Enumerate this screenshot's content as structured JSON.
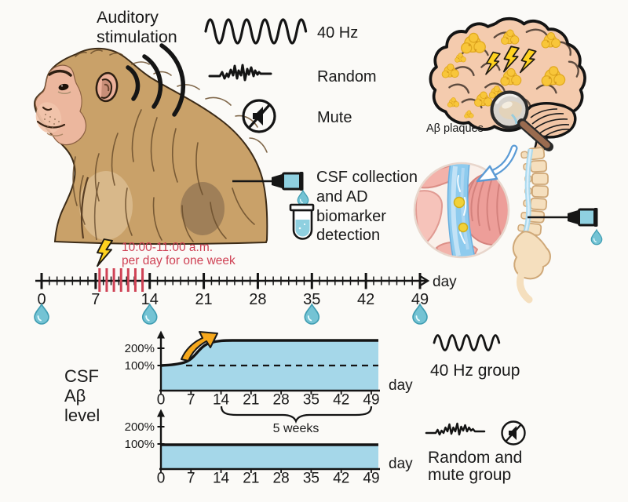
{
  "colors": {
    "background": "#fbfaf7",
    "ink": "#1a1a1a",
    "accent_red": "#cf4255",
    "area_fill_blue": "#a5d7e9",
    "drop_teal": "#74c3d4",
    "needle_blue": "#8fd0e0",
    "plaque_yellow": "#f8c63a",
    "bolt_yellow": "#ffd21f",
    "arrow_orange": "#f6a81c",
    "brain_tan": "#f4cbae",
    "fur_tan": "#c9a169",
    "inset_pink": "#ee9f9a",
    "inset_blue": "#8ecbee",
    "arrow_blue": "#5b9bd5"
  },
  "auditory": {
    "line1": "Auditory",
    "line2": "stimulation"
  },
  "stim": {
    "hz40": "40 Hz",
    "random": "Random",
    "mute": "Mute"
  },
  "brain": {
    "plaques_label": "Aβ plaques"
  },
  "csf_note": {
    "line1": "CSF collection",
    "line2": "and AD",
    "line3": "biomarker",
    "line4": "detection"
  },
  "timeline": {
    "note_line1": "10:00-11:00 a.m.",
    "note_line2": "per day for one week",
    "axis_label": "day",
    "ticks": [
      "0",
      "7",
      "14",
      "21",
      "28",
      "35",
      "42",
      "49"
    ],
    "stim_days": [
      7.5,
      8.43,
      9.36,
      10.29,
      11.21,
      12.14,
      13.07
    ],
    "collection_days": [
      0,
      14,
      35,
      49
    ]
  },
  "charts": {
    "ylabel_line1": "CSF",
    "ylabel_line2": "Aβ",
    "ylabel_line3": "level",
    "y200": "200%",
    "y100": "100%",
    "axis_label": "day",
    "xticks": [
      "0",
      "7",
      "14",
      "21",
      "28",
      "35",
      "42",
      "49"
    ],
    "brace_label": "5 weeks",
    "group1_label": "40 Hz group",
    "group2_line1": "Random and",
    "group2_line2": "mute group"
  },
  "chart_data": [
    {
      "type": "area",
      "title": "CSF Aβ level - 40 Hz group",
      "x_days": [
        0,
        7,
        14,
        21,
        28,
        35,
        42,
        49
      ],
      "series": [
        {
          "name": "40 Hz group",
          "values_pct": [
            100,
            110,
            220,
            220,
            220,
            220,
            220,
            220
          ]
        }
      ],
      "ylabel": "CSF Aβ level",
      "xlabel": "day",
      "yticks": [
        "100%",
        "200%"
      ],
      "baseline_pct": 100,
      "annotations": [
        "dashed baseline at 100%",
        "orange arrow marks sigmoid rise starting ~day 7, plateau after day 14",
        "brace: 5 weeks spanning day 14-49"
      ]
    },
    {
      "type": "area",
      "title": "CSF Aβ level - Random and mute group",
      "x_days": [
        0,
        7,
        14,
        21,
        28,
        35,
        42,
        49
      ],
      "series": [
        {
          "name": "Random and mute group",
          "values_pct": [
            100,
            100,
            100,
            100,
            100,
            100,
            100,
            100
          ]
        }
      ],
      "ylabel": "CSF Aβ level",
      "xlabel": "day",
      "yticks": [
        "100%",
        "200%"
      ]
    }
  ]
}
